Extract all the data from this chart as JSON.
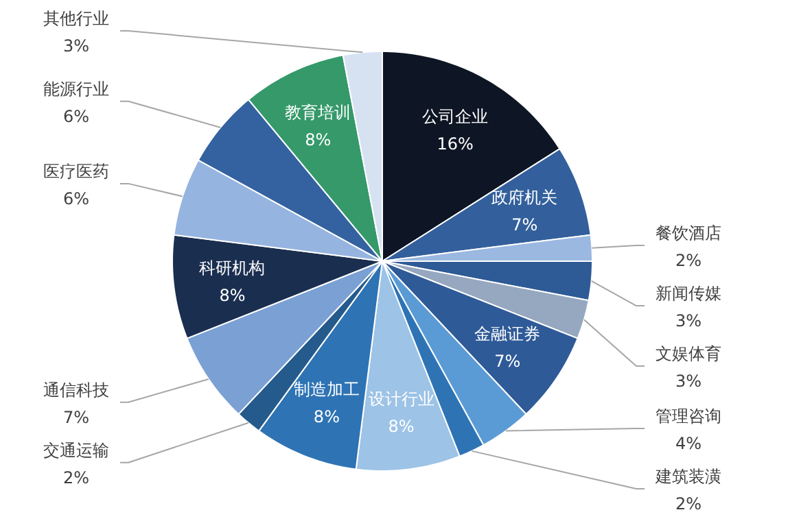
{
  "chart_data": {
    "type": "pie",
    "categories": [
      "公司企业",
      "政府机关",
      "餐饮酒店",
      "新闻传媒",
      "文娱体育",
      "金融证券",
      "管理咨询",
      "建筑装潢",
      "设计行业",
      "制造加工",
      "交通运输",
      "通信科技",
      "科研机构",
      "医疗医药",
      "能源行业",
      "教育培训",
      "其他行业"
    ],
    "values": [
      16,
      7,
      2,
      3,
      3,
      7,
      4,
      2,
      8,
      8,
      2,
      7,
      8,
      6,
      6,
      8,
      3
    ],
    "value_labels": [
      "16%",
      "7%",
      "2%",
      "3%",
      "3%",
      "7%",
      "4%",
      "2%",
      "8%",
      "8%",
      "2%",
      "7%",
      "8%",
      "6%",
      "6%",
      "8%",
      "3%"
    ],
    "colors": [
      "#0e1524",
      "#33609c",
      "#9ab8e0",
      "#2e5a96",
      "#96a8c0",
      "#2f5a98",
      "#5b9bd5",
      "#2e74b5",
      "#9dc3e6",
      "#2e73b4",
      "#255a8c",
      "#7aa0d4",
      "#1a2e50",
      "#95b4e0",
      "#3462a0",
      "#35996a",
      "#d6e2f2"
    ]
  }
}
